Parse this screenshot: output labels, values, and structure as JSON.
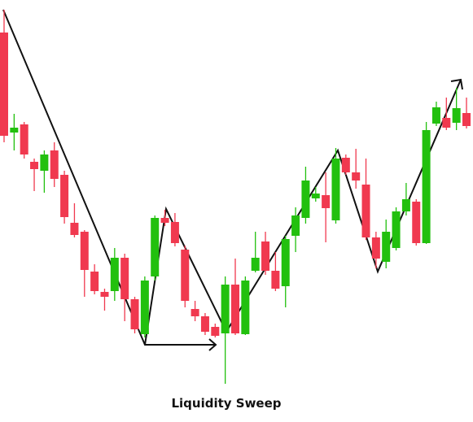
{
  "chart_data": {
    "type": "candlestick",
    "annotation": "Liquidity Sweep",
    "open": [
      479,
      356,
      366,
      320,
      309,
      334,
      304,
      245,
      234,
      185,
      160,
      161,
      202,
      151,
      108,
      179,
      251,
      246,
      212,
      139,
      130,
      117,
      109,
      169,
      108,
      186,
      222,
      186,
      167,
      229,
      251,
      275,
      279,
      248,
      325,
      307,
      292,
      227,
      197,
      214,
      259,
      271,
      220,
      367,
      374,
      368,
      380
    ],
    "high": [
      507,
      379,
      369,
      324,
      334,
      344,
      309,
      269,
      236,
      194,
      164,
      214,
      207,
      154,
      179,
      254,
      261,
      257,
      217,
      149,
      134,
      121,
      179,
      201,
      179,
      234,
      234,
      209,
      229,
      264,
      314,
      289,
      307,
      337,
      329,
      336,
      324,
      234,
      249,
      264,
      294,
      274,
      369,
      394,
      399,
      411,
      399
    ],
    "low": [
      344,
      334,
      324,
      284,
      282,
      289,
      244,
      227,
      154,
      157,
      137,
      149,
      124,
      109,
      104,
      174,
      241,
      216,
      141,
      124,
      107,
      104,
      47,
      107,
      107,
      184,
      181,
      161,
      141,
      209,
      244,
      271,
      221,
      244,
      304,
      287,
      224,
      189,
      189,
      211,
      254,
      217,
      219,
      364,
      359,
      359,
      361
    ],
    "close": [
      352,
      362,
      329,
      311,
      329,
      299,
      252,
      230,
      187,
      161,
      154,
      202,
      151,
      114,
      174,
      251,
      245,
      220,
      149,
      130,
      111,
      106,
      169,
      109,
      174,
      202,
      186,
      164,
      225,
      254,
      297,
      281,
      263,
      324,
      307,
      297,
      227,
      201,
      234,
      259,
      274,
      220,
      359,
      387,
      362,
      386,
      364
    ],
    "up_color": "#22c00e",
    "down_color": "#f0394f",
    "ylim": [
      0,
      519
    ]
  }
}
